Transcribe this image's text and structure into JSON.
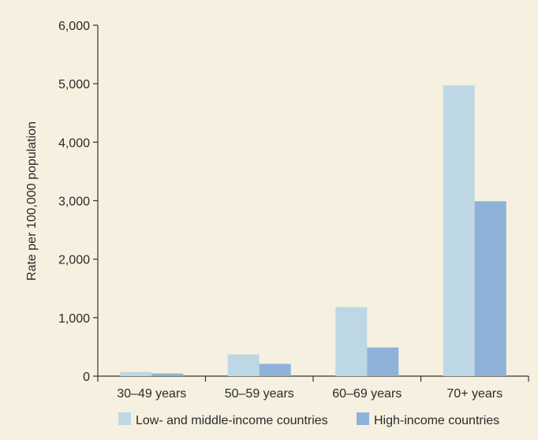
{
  "chart_data": {
    "type": "bar",
    "title": "",
    "xlabel": "",
    "ylabel": "Rate per 100,000 population",
    "ylim": [
      0,
      6000
    ],
    "yticks": [
      0,
      1000,
      2000,
      3000,
      4000,
      5000,
      6000
    ],
    "ytick_labels": [
      "0",
      "1,000",
      "2,000",
      "3,000",
      "4,000",
      "5,000",
      "6,000"
    ],
    "categories": [
      "30–49 years",
      "50–59 years",
      "60–69 years",
      "70+ years"
    ],
    "series": [
      {
        "name": "Low- and middle-income countries",
        "values": [
          70,
          370,
          1180,
          4970
        ],
        "color": "#bdd7e5"
      },
      {
        "name": "High-income countries",
        "values": [
          45,
          210,
          490,
          2990
        ],
        "color": "#8fb2d9"
      }
    ],
    "grid": false,
    "legend_position": "bottom"
  },
  "colors": {
    "background": "#f5f0e0",
    "axis": "#333333"
  }
}
